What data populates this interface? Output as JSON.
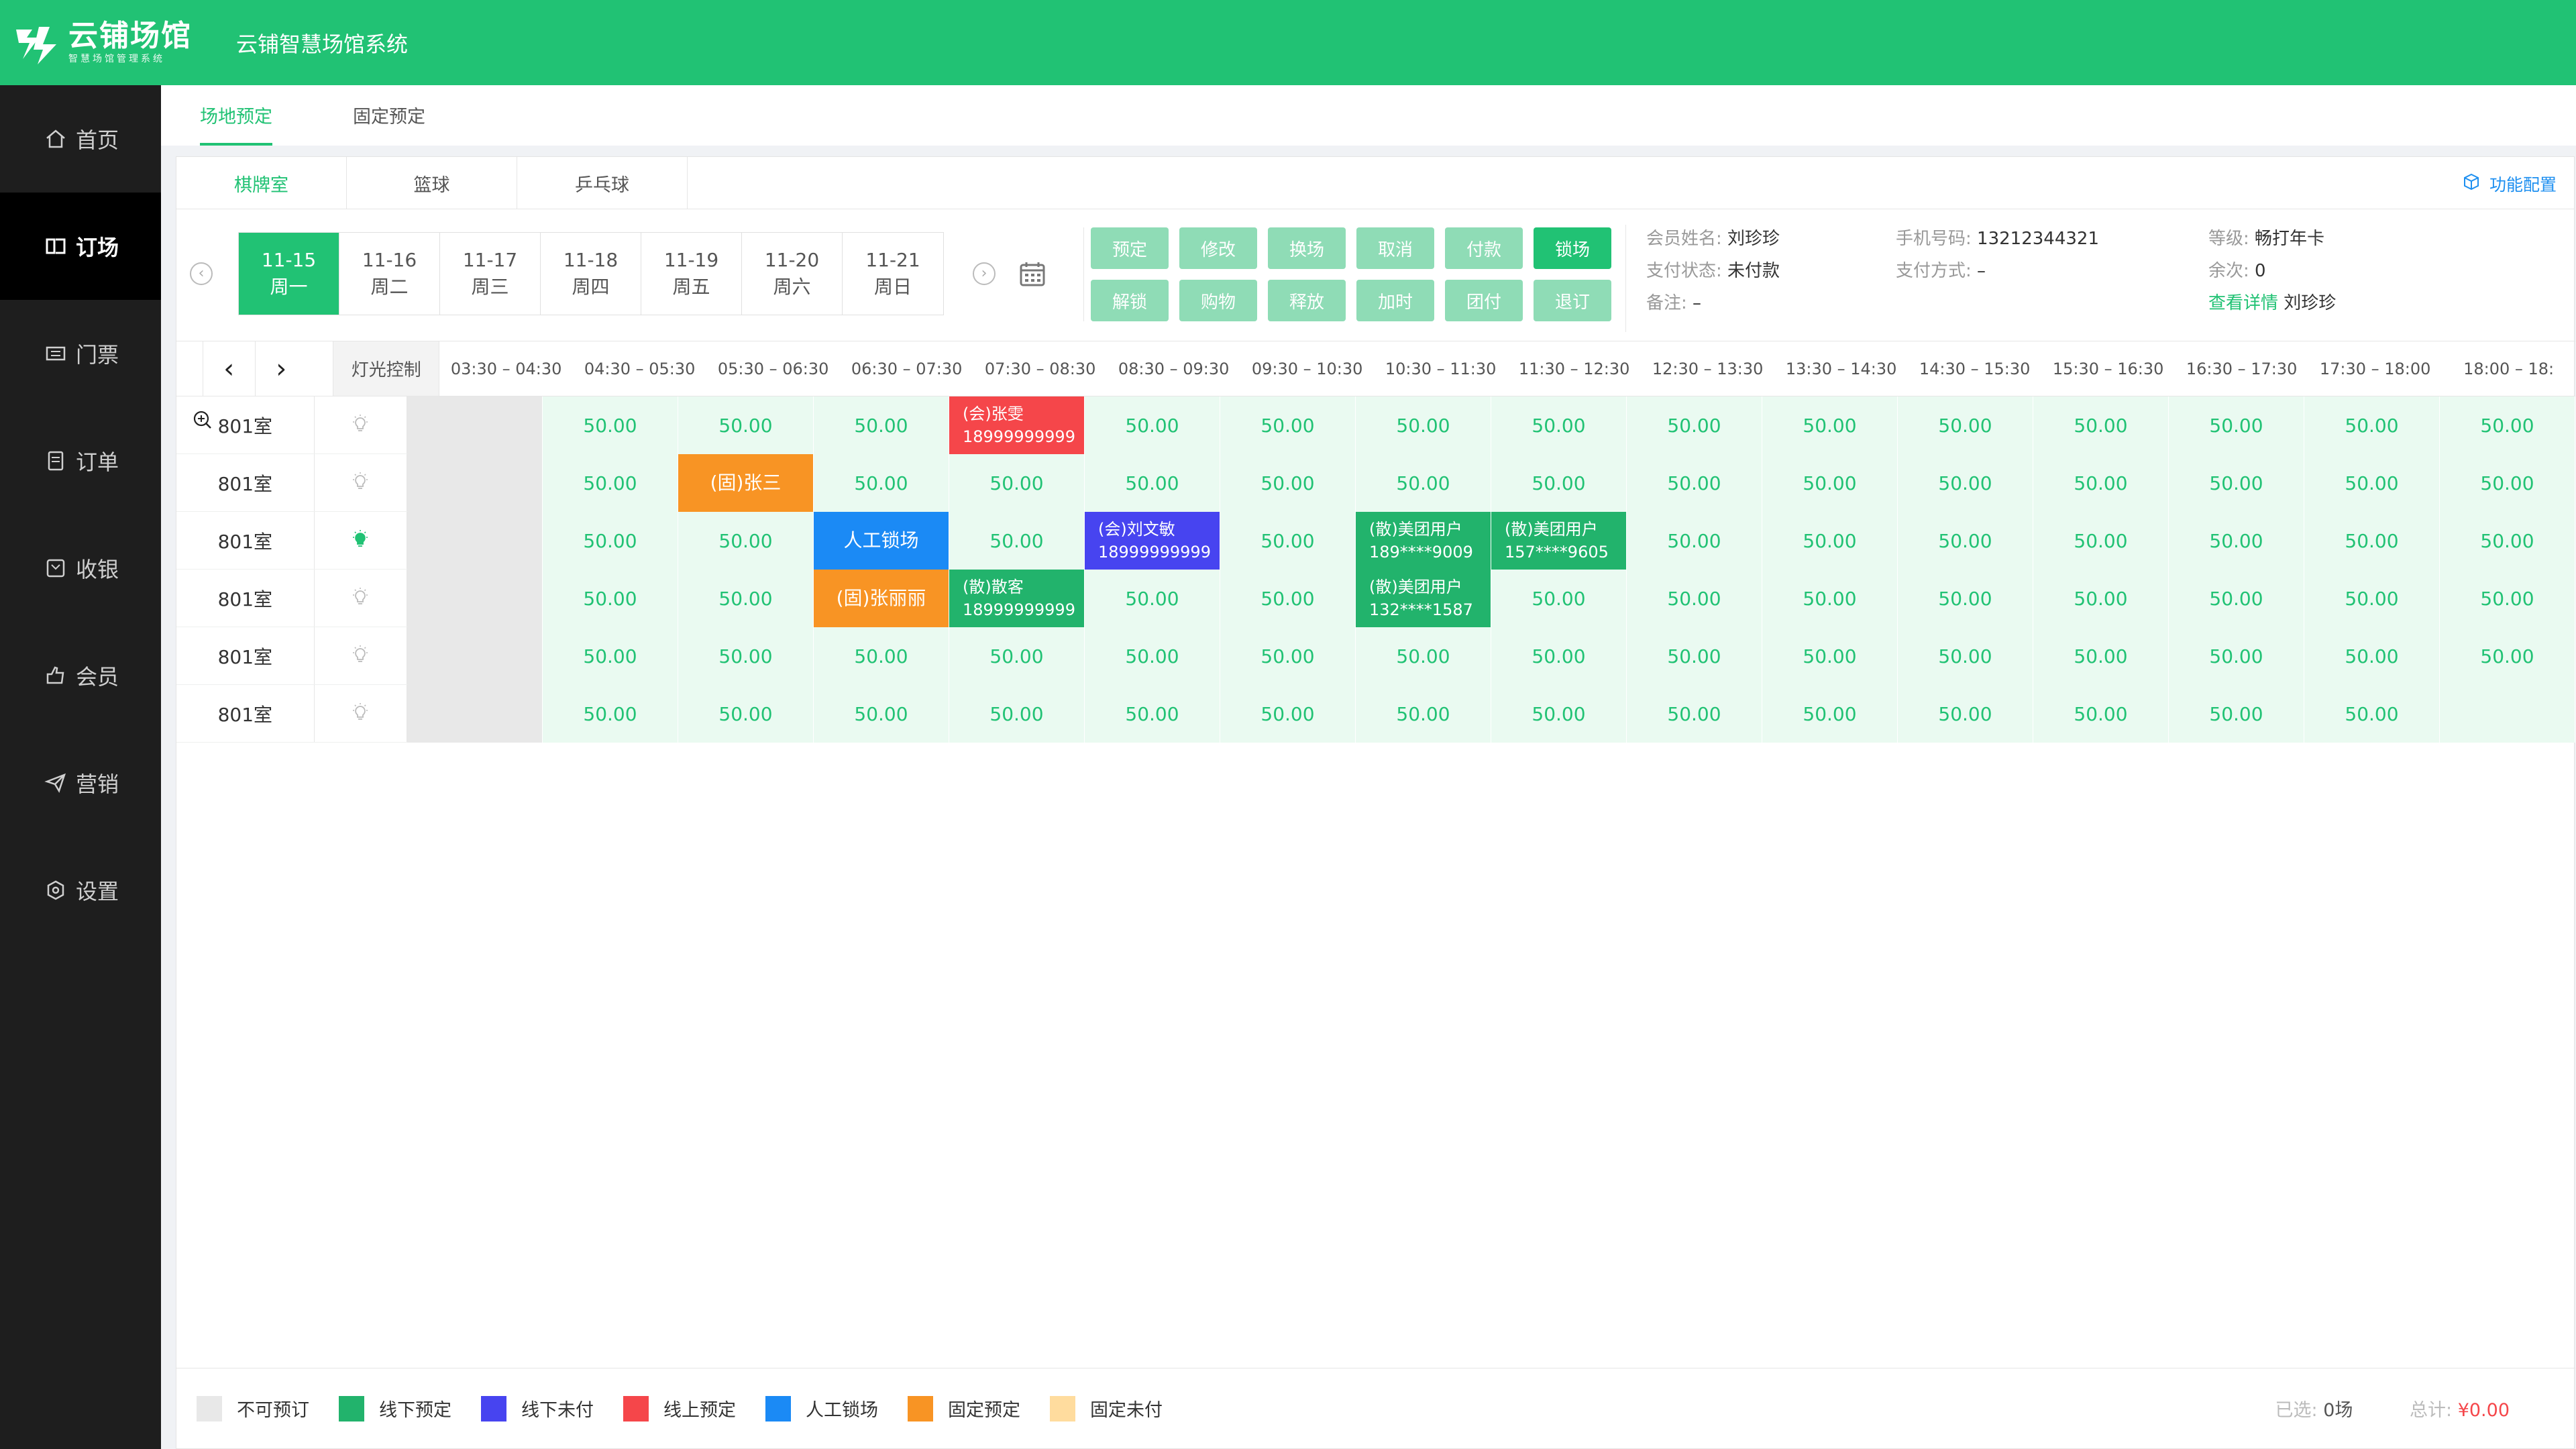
{
  "header": {
    "logo_title": "云铺场馆",
    "logo_sub": "智慧场馆管理系统",
    "system_title": "云铺智慧场馆系统"
  },
  "sidebar": {
    "items": [
      {
        "label": "首页",
        "icon": "home-icon"
      },
      {
        "label": "订场",
        "icon": "book-icon",
        "active": true
      },
      {
        "label": "门票",
        "icon": "ticket-icon"
      },
      {
        "label": "订单",
        "icon": "order-icon"
      },
      {
        "label": "收银",
        "icon": "cashier-icon"
      },
      {
        "label": "会员",
        "icon": "member-icon"
      },
      {
        "label": "营销",
        "icon": "marketing-icon"
      },
      {
        "label": "设置",
        "icon": "settings-icon"
      }
    ]
  },
  "top_tabs": [
    {
      "label": "场地预定",
      "active": true
    },
    {
      "label": "固定预定"
    }
  ],
  "venue_tabs": [
    {
      "label": "棋牌室",
      "active": true
    },
    {
      "label": "篮球"
    },
    {
      "label": "乒乓球"
    }
  ],
  "func_config": "功能配置",
  "dates": [
    {
      "date": "11-15",
      "weekday": "周一",
      "active": true
    },
    {
      "date": "11-16",
      "weekday": "周二"
    },
    {
      "date": "11-17",
      "weekday": "周三"
    },
    {
      "date": "11-18",
      "weekday": "周四"
    },
    {
      "date": "11-19",
      "weekday": "周五"
    },
    {
      "date": "11-20",
      "weekday": "周六"
    },
    {
      "date": "11-21",
      "weekday": "周日"
    }
  ],
  "actions": [
    {
      "label": "预定",
      "primary": false
    },
    {
      "label": "修改",
      "primary": false
    },
    {
      "label": "换场",
      "primary": false
    },
    {
      "label": "取消",
      "primary": false
    },
    {
      "label": "付款",
      "primary": false
    },
    {
      "label": "锁场",
      "primary": true
    },
    {
      "label": "解锁",
      "primary": false
    },
    {
      "label": "购物",
      "primary": false
    },
    {
      "label": "释放",
      "primary": false
    },
    {
      "label": "加时",
      "primary": false
    },
    {
      "label": "团付",
      "primary": false
    },
    {
      "label": "退订",
      "primary": false
    }
  ],
  "member": {
    "name_label": "会员姓名:",
    "name": "刘珍珍",
    "phone_label": "手机号码:",
    "phone": "13212344321",
    "level_label": "等级:",
    "level": "畅打年卡",
    "pay_status_label": "支付状态:",
    "pay_status": "未付款",
    "pay_method_label": "支付方式:",
    "pay_method": "–",
    "remain_label": "余次:",
    "remain": "0",
    "note_label": "备注:",
    "note": "–",
    "detail_link": "查看详情",
    "detail_name": "刘珍珍"
  },
  "grid": {
    "light_header": "灯光控制",
    "slots": [
      "03:30 – 04:30",
      "04:30 – 05:30",
      "05:30 – 06:30",
      "06:30 – 07:30",
      "07:30 – 08:30",
      "08:30 – 09:30",
      "09:30 – 10:30",
      "10:30 – 11:30",
      "11:30 – 12:30",
      "12:30 – 13:30",
      "13:30 – 14:30",
      "14:30 – 15:30",
      "15:30 – 16:30",
      "16:30 – 17:30",
      "17:30 – 18:00",
      "18:00 – 18:"
    ],
    "rows": [
      {
        "name": "801室",
        "light_on": false,
        "zoom": true,
        "cells": [
          {
            "t": "na"
          },
          {
            "v": "50.00"
          },
          {
            "v": "50.00"
          },
          {
            "v": "50.00"
          },
          {
            "t": "online",
            "l1": "(会)张雯",
            "l2": "18999999999"
          },
          {
            "v": "50.00"
          },
          {
            "v": "50.00"
          },
          {
            "v": "50.00"
          },
          {
            "v": "50.00"
          },
          {
            "v": "50.00"
          },
          {
            "v": "50.00"
          },
          {
            "v": "50.00"
          },
          {
            "v": "50.00"
          },
          {
            "v": "50.00"
          },
          {
            "v": "50.00"
          },
          {
            "v": "50.00"
          }
        ]
      },
      {
        "name": "801室",
        "light_on": false,
        "cells": [
          {
            "t": "na"
          },
          {
            "v": "50.00"
          },
          {
            "t": "fixed",
            "l1": "(固)张三"
          },
          {
            "v": "50.00"
          },
          {
            "v": "50.00"
          },
          {
            "v": "50.00"
          },
          {
            "v": "50.00"
          },
          {
            "v": "50.00"
          },
          {
            "v": "50.00"
          },
          {
            "v": "50.00"
          },
          {
            "v": "50.00"
          },
          {
            "v": "50.00"
          },
          {
            "v": "50.00"
          },
          {
            "v": "50.00"
          },
          {
            "v": "50.00"
          },
          {
            "v": "50.00"
          }
        ]
      },
      {
        "name": "801室",
        "light_on": true,
        "cells": [
          {
            "t": "na"
          },
          {
            "v": "50.00"
          },
          {
            "v": "50.00"
          },
          {
            "t": "manual",
            "l1": "人工锁场"
          },
          {
            "v": "50.00"
          },
          {
            "t": "unpaid",
            "l1": "(会)刘文敏",
            "l2": "18999999999"
          },
          {
            "v": "50.00"
          },
          {
            "t": "offline",
            "l1": "(散)美团用户",
            "l2": "189****9009"
          },
          {
            "t": "offline",
            "l1": "(散)美团用户",
            "l2": "157****9605"
          },
          {
            "v": "50.00"
          },
          {
            "v": "50.00"
          },
          {
            "v": "50.00"
          },
          {
            "v": "50.00"
          },
          {
            "v": "50.00"
          },
          {
            "v": "50.00"
          },
          {
            "v": "50.00"
          }
        ]
      },
      {
        "name": "801室",
        "light_on": false,
        "cells": [
          {
            "t": "na"
          },
          {
            "v": "50.00"
          },
          {
            "v": "50.00"
          },
          {
            "t": "fixed",
            "l1": "(固)张丽丽"
          },
          {
            "t": "offline",
            "l1": "(散)散客",
            "l2": "18999999999"
          },
          {
            "v": "50.00"
          },
          {
            "v": "50.00"
          },
          {
            "t": "offline",
            "l1": "(散)美团用户",
            "l2": "132****1587"
          },
          {
            "v": "50.00"
          },
          {
            "v": "50.00"
          },
          {
            "v": "50.00"
          },
          {
            "v": "50.00"
          },
          {
            "v": "50.00"
          },
          {
            "v": "50.00"
          },
          {
            "v": "50.00"
          },
          {
            "v": "50.00"
          }
        ]
      },
      {
        "name": "801室",
        "light_on": false,
        "cells": [
          {
            "t": "na"
          },
          {
            "v": "50.00"
          },
          {
            "v": "50.00"
          },
          {
            "v": "50.00"
          },
          {
            "v": "50.00"
          },
          {
            "v": "50.00"
          },
          {
            "v": "50.00"
          },
          {
            "v": "50.00"
          },
          {
            "v": "50.00"
          },
          {
            "v": "50.00"
          },
          {
            "v": "50.00"
          },
          {
            "v": "50.00"
          },
          {
            "v": "50.00"
          },
          {
            "v": "50.00"
          },
          {
            "v": "50.00"
          },
          {
            "v": "50.00"
          }
        ]
      },
      {
        "name": "801室",
        "light_on": false,
        "cells": [
          {
            "t": "na"
          },
          {
            "v": "50.00"
          },
          {
            "v": "50.00"
          },
          {
            "v": "50.00"
          },
          {
            "v": "50.00"
          },
          {
            "v": "50.00"
          },
          {
            "v": "50.00"
          },
          {
            "v": "50.00"
          },
          {
            "v": "50.00"
          },
          {
            "v": "50.00"
          },
          {
            "v": "50.00"
          },
          {
            "v": "50.00"
          },
          {
            "v": "50.00"
          },
          {
            "v": "50.00"
          },
          {
            "v": "50.00"
          },
          {
            "v": ""
          }
        ]
      }
    ]
  },
  "legend": [
    {
      "label": "不可预订",
      "color": "#e8e8e8"
    },
    {
      "label": "线下预定",
      "color": "#22b36c"
    },
    {
      "label": "线下未付",
      "color": "#4744f0"
    },
    {
      "label": "线上预定",
      "color": "#f5464a"
    },
    {
      "label": "人工锁场",
      "color": "#1b8af5"
    },
    {
      "label": "固定预定",
      "color": "#f89424"
    },
    {
      "label": "固定未付",
      "color": "#ffdc9e"
    }
  ],
  "summary": {
    "selected_label": "已选:",
    "selected": "0场",
    "total_label": "总计:",
    "total": "¥0.00"
  }
}
